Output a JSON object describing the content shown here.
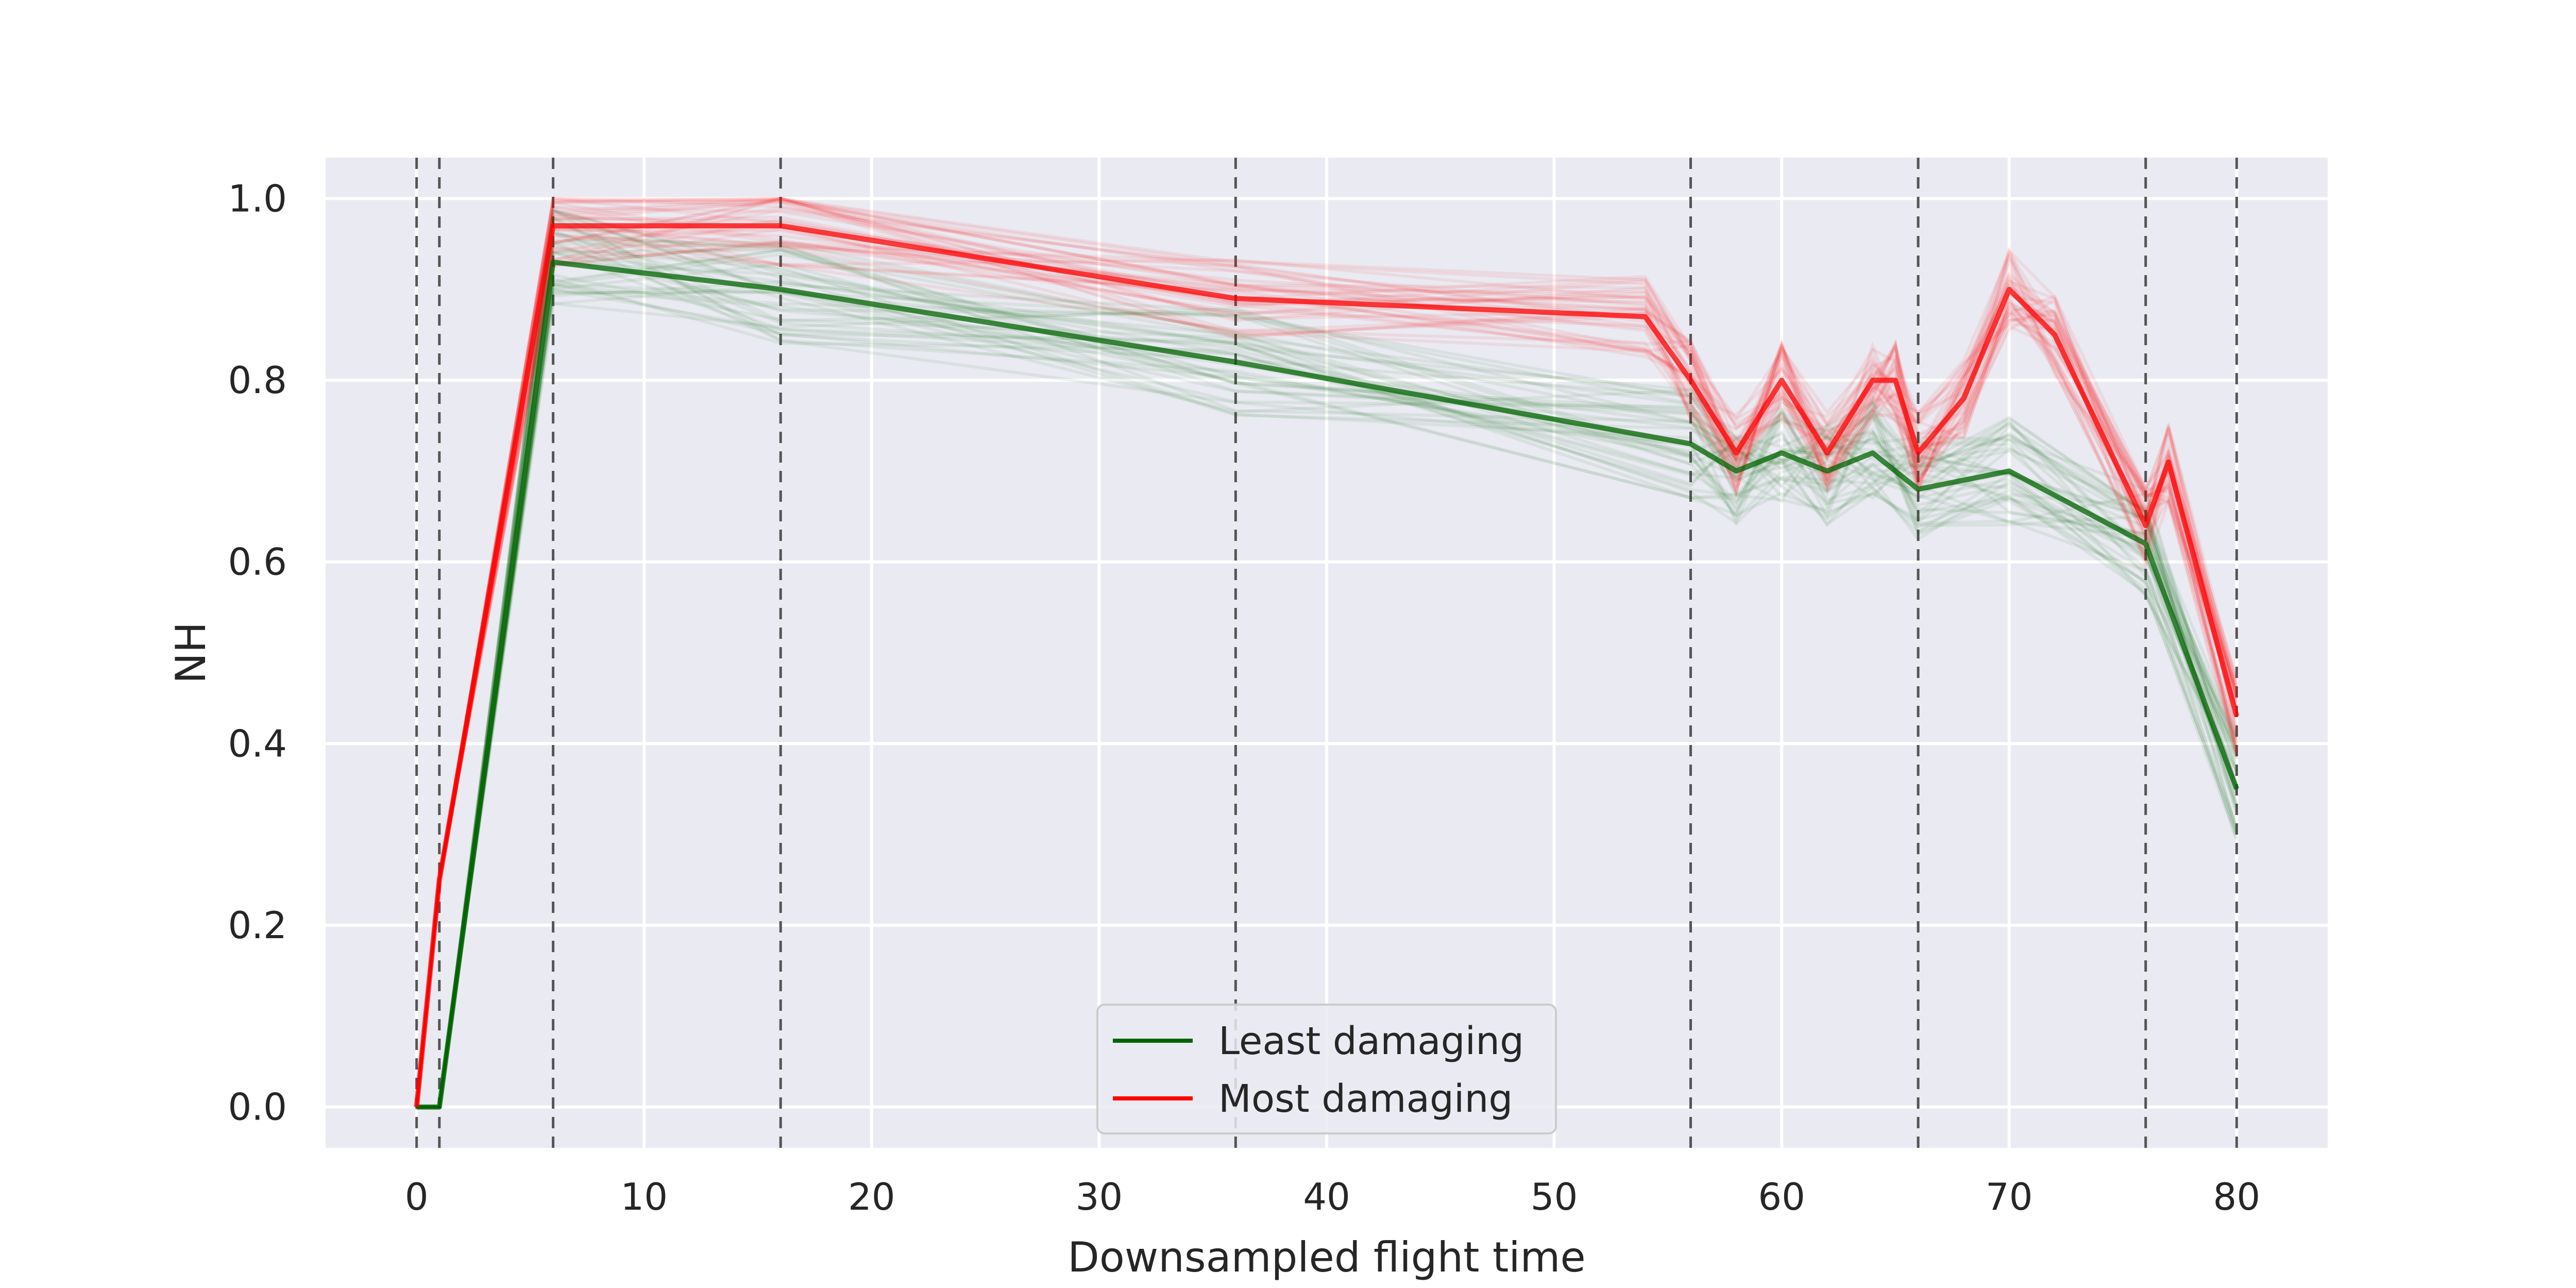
{
  "chart_data": {
    "type": "line",
    "title": "",
    "xlabel": "Downsampled flight time",
    "ylabel": "NH",
    "xlim": [
      -4,
      84
    ],
    "ylim": [
      -0.045,
      1.045
    ],
    "x_ticks": [
      0,
      10,
      20,
      30,
      40,
      50,
      60,
      70,
      80
    ],
    "y_ticks": [
      0.0,
      0.2,
      0.4,
      0.6,
      0.8,
      1.0
    ],
    "y_tick_labels": [
      "0.0",
      "0.2",
      "0.4",
      "0.6",
      "0.8",
      "1.0"
    ],
    "grid": true,
    "phase_boundaries_x": [
      0,
      1,
      6,
      16,
      36,
      56,
      66,
      76,
      80
    ],
    "legend": {
      "placement": "lower-center",
      "entries": [
        {
          "label": "Least damaging",
          "color": "#006400"
        },
        {
          "label": "Most damaging",
          "color": "#ff0000"
        }
      ]
    },
    "series": [
      {
        "name": "Least damaging",
        "color": "#006400",
        "x": [
          0,
          1,
          6,
          16,
          36,
          56,
          58,
          60,
          62,
          64,
          66,
          70,
          76,
          80
        ],
        "y": [
          0.0,
          0.0,
          0.93,
          0.9,
          0.82,
          0.73,
          0.7,
          0.72,
          0.7,
          0.72,
          0.68,
          0.7,
          0.62,
          0.35
        ]
      },
      {
        "name": "Most damaging",
        "color": "#ff0000",
        "x": [
          0,
          1,
          6,
          16,
          36,
          54,
          56,
          58,
          60,
          62,
          64,
          65,
          66,
          68,
          70,
          72,
          76,
          77,
          80
        ],
        "y": [
          0.0,
          0.25,
          0.97,
          0.97,
          0.89,
          0.87,
          0.8,
          0.72,
          0.8,
          0.72,
          0.8,
          0.8,
          0.72,
          0.78,
          0.9,
          0.85,
          0.64,
          0.71,
          0.43
        ]
      }
    ]
  },
  "colors": {
    "plot_background": "#eaeaf2",
    "grid": "#ffffff",
    "phase_line": "#555555",
    "least_damaging": "#006400",
    "most_damaging": "#ff0000"
  }
}
